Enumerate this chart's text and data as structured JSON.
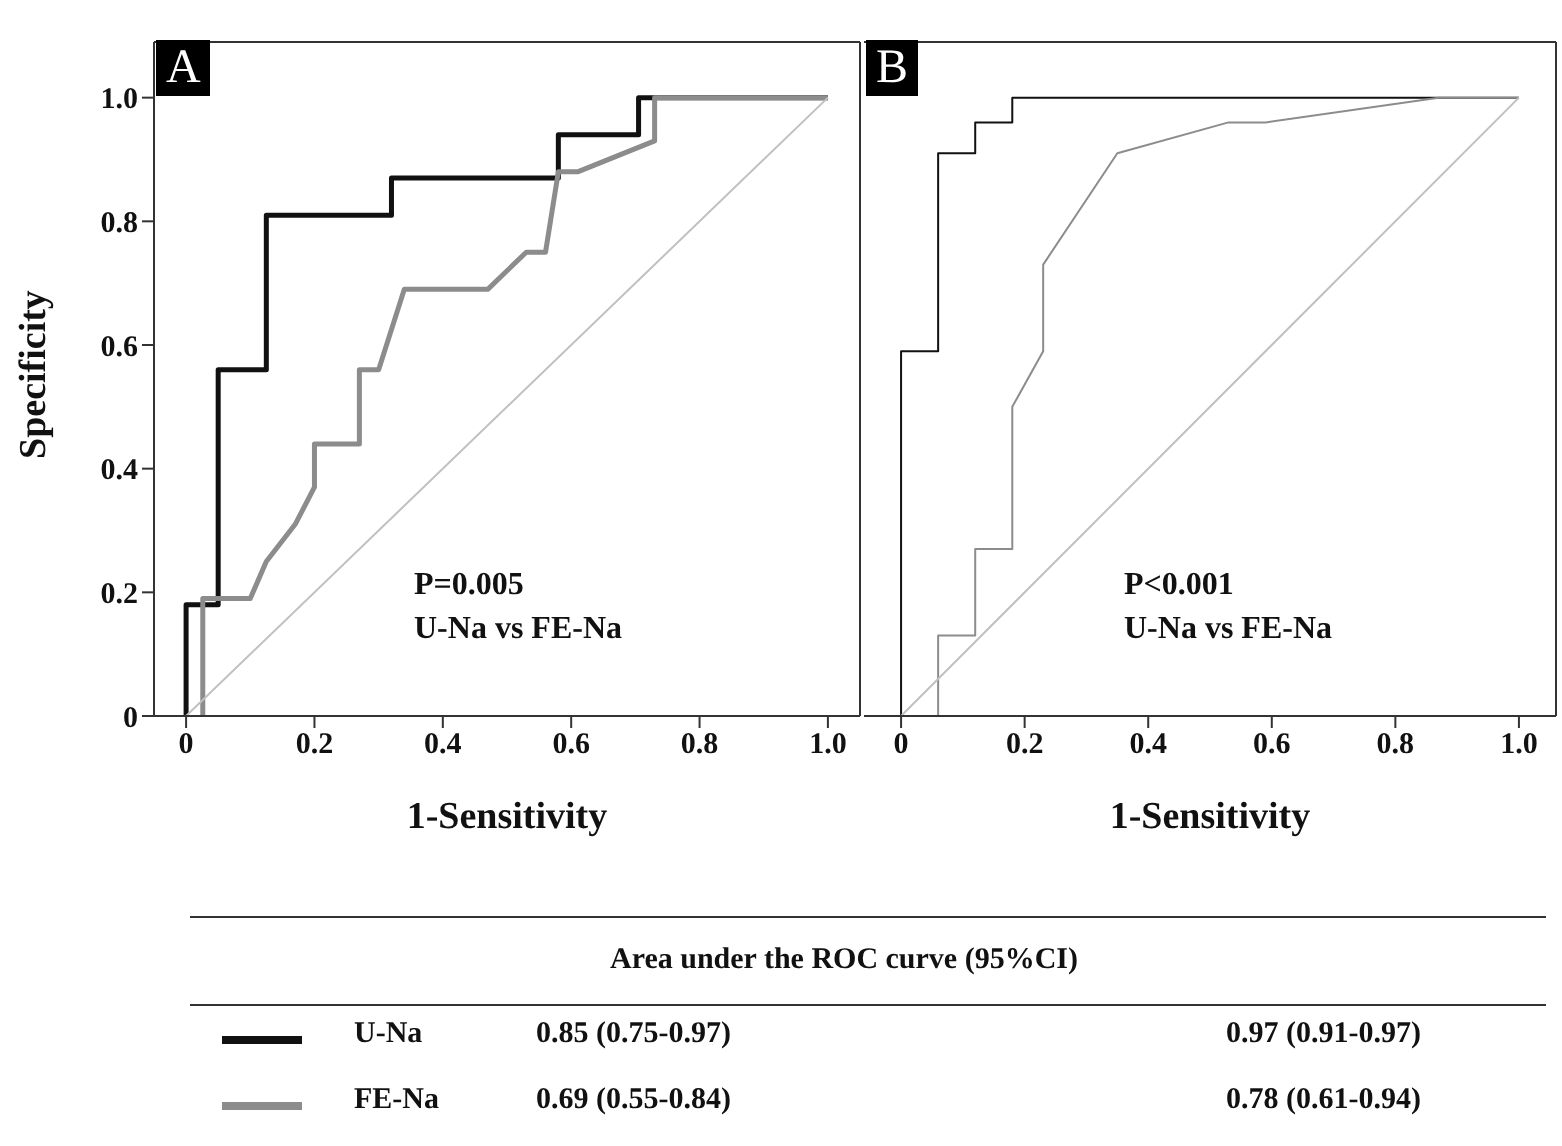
{
  "chart_data": [
    {
      "type": "line",
      "title": "A",
      "xlabel": "1-Sensitivity",
      "ylabel": "Specificity",
      "legend_title": "Area under the ROC curve (95%CI)",
      "legend": "bottom",
      "xlim": [
        -0.05,
        1.05
      ],
      "ylim": [
        0,
        1.09
      ],
      "xticks": [
        0,
        0.2,
        0.4,
        0.6,
        0.8,
        {
          "value": 1,
          "label": "1.0"
        }
      ],
      "yticks": [
        0,
        0.2,
        0.4,
        0.6,
        0.8,
        {
          "value": 1,
          "label": "1.0"
        }
      ],
      "series": [
        {
          "name": "U-Na",
          "color": "#111111",
          "x": [
            0,
            0,
            0.05,
            0.05,
            0.125,
            0.125,
            0.32,
            0.32,
            0.58,
            0.58,
            0.705,
            0.705,
            1
          ],
          "values": [
            0,
            0.18,
            0.18,
            0.56,
            0.56,
            0.81,
            0.81,
            0.87,
            0.87,
            0.94,
            0.94,
            1,
            1
          ]
        },
        {
          "name": "FE-Na",
          "color": "#8c8c8c",
          "x": [
            0.026,
            0.026,
            0.1,
            0.125,
            0.17,
            0.2,
            0.2,
            0.27,
            0.27,
            0.3,
            0.34,
            0.47,
            0.53,
            0.56,
            0.58,
            0.61,
            0.73,
            0.73,
            1
          ],
          "values": [
            0,
            0.19,
            0.19,
            0.25,
            0.31,
            0.37,
            0.44,
            0.44,
            0.56,
            0.56,
            0.69,
            0.69,
            0.75,
            0.75,
            0.88,
            0.88,
            0.93,
            1,
            1
          ]
        },
        {
          "color": "#c0c0c0",
          "x": [
            0,
            1
          ],
          "values": [
            0,
            1
          ]
        }
      ],
      "annotations": [
        "P=0.005",
        "U-Na vs FE-Na",
        "0.85 (0.75-0.97)",
        "0.69 (0.55-0.84)"
      ]
    },
    {
      "type": "line",
      "title": "B",
      "xlabel": "1-Sensitivity",
      "tick_labels": "x",
      "xlim": [
        -0.06,
        1.06
      ],
      "ylim": [
        0,
        1.09
      ],
      "xticks": [
        0,
        0.2,
        0.4,
        0.6,
        0.8,
        {
          "value": 1,
          "label": "1.0"
        }
      ],
      "series": [
        {
          "color": "#111111",
          "x": [
            0,
            0,
            0.06,
            0.06,
            0.12,
            0.12,
            0.18,
            0.18,
            1
          ],
          "values": [
            0,
            0.59,
            0.59,
            0.91,
            0.91,
            0.96,
            0.96,
            1,
            1
          ]
        },
        {
          "color": "#8c8c8c",
          "x": [
            0.06,
            0.06,
            0.12,
            0.12,
            0.18,
            0.18,
            0.23,
            0.23,
            0.35,
            0.53,
            0.59,
            0.87,
            1
          ],
          "values": [
            0,
            0.13,
            0.13,
            0.27,
            0.27,
            0.5,
            0.59,
            0.73,
            0.91,
            0.96,
            0.96,
            1,
            1
          ]
        },
        {
          "color": "#c0c0c0",
          "x": [
            0,
            1
          ],
          "values": [
            0,
            1
          ]
        }
      ],
      "annotations": [
        "P<0.001",
        "U-Na vs FE-Na",
        "0.97 (0.91-0.97)",
        "0.78 (0.61-0.94)"
      ]
    }
  ]
}
